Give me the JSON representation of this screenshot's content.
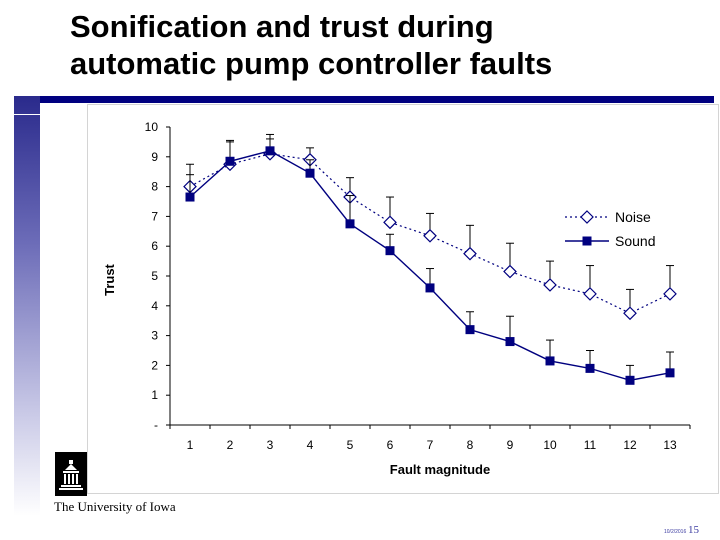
{
  "slide": {
    "title_line1": "Sonification and trust during",
    "title_line2": "automatic pump controller faults",
    "university": "The University of Iowa",
    "date": "10/2/2016",
    "page_number": "15"
  },
  "colors": {
    "accent": "#000080",
    "series": "#00007f"
  },
  "logo_icon": "university-building-logo-icon",
  "chart_data": {
    "type": "line",
    "xlabel": "Fault magnitude",
    "ylabel": "Trust",
    "x": [
      1,
      2,
      3,
      4,
      5,
      6,
      7,
      8,
      9,
      10,
      11,
      12,
      13
    ],
    "ylim": [
      0,
      10
    ],
    "yticks": [
      0,
      1,
      2,
      3,
      4,
      5,
      6,
      7,
      8,
      9,
      10
    ],
    "ytick_labels": [
      "-",
      "1",
      "2",
      "3",
      "4",
      "5",
      "6",
      "7",
      "8",
      "9",
      "10"
    ],
    "grid": false,
    "legend_position": "right",
    "series": [
      {
        "name": "Noise",
        "marker": "diamond-open",
        "line": "dotted",
        "values": [
          8.0,
          8.75,
          9.1,
          8.9,
          7.65,
          6.8,
          6.35,
          5.75,
          5.15,
          4.7,
          4.4,
          3.75,
          4.4
        ],
        "error_upper": [
          0.75,
          0.75,
          0.5,
          0.4,
          0.65,
          0.85,
          0.75,
          0.95,
          0.95,
          0.8,
          0.95,
          0.8,
          0.95
        ]
      },
      {
        "name": "Sound",
        "marker": "square-filled",
        "line": "solid",
        "values": [
          7.65,
          8.85,
          9.2,
          8.45,
          6.75,
          5.85,
          4.6,
          3.2,
          2.8,
          2.15,
          1.9,
          1.5,
          1.75
        ],
        "error_upper": [
          0.75,
          0.7,
          0.55,
          0.45,
          0.95,
          0.55,
          0.65,
          0.6,
          0.85,
          0.7,
          0.6,
          0.5,
          0.7
        ]
      }
    ]
  }
}
